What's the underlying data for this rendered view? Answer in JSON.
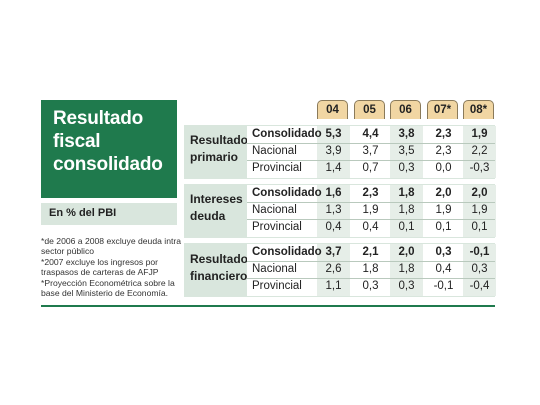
{
  "title": [
    "Resultado",
    "fiscal",
    "consolidado"
  ],
  "subtitle": "En % del PBI",
  "notes": [
    "*de 2006 a 2008 excluye deuda intra",
    "sector público",
    "*2007 excluye los ingresos por",
    "traspasos de carteras de AFJP",
    "*Proyección Econométrica sobre la",
    "base del Ministerio de Economía."
  ],
  "years": [
    "04",
    "05",
    "06",
    "07*",
    "08*"
  ],
  "groups": [
    {
      "label": [
        "Resultado",
        "primario"
      ],
      "rows": [
        {
          "name": "Consolidado",
          "values": [
            "5,3",
            "4,4",
            "3,8",
            "2,3",
            "1,9"
          ]
        },
        {
          "name": "Nacional",
          "values": [
            "3,9",
            "3,7",
            "3,5",
            "2,3",
            "2,2"
          ]
        },
        {
          "name": "Provincial",
          "values": [
            "1,4",
            "0,7",
            "0,3",
            "0,0",
            "-0,3"
          ]
        }
      ]
    },
    {
      "label": [
        "Intereses",
        "deuda"
      ],
      "rows": [
        {
          "name": "Consolidado",
          "values": [
            "1,6",
            "2,3",
            "1,8",
            "2,0",
            "2,0"
          ]
        },
        {
          "name": "Nacional",
          "values": [
            "1,3",
            "1,9",
            "1,8",
            "1,9",
            "1,9"
          ]
        },
        {
          "name": "Provincial",
          "values": [
            "0,4",
            "0,4",
            "0,1",
            "0,1",
            "0,1"
          ]
        }
      ]
    },
    {
      "label": [
        "Resultado",
        "financiero"
      ],
      "rows": [
        {
          "name": "Consolidado",
          "values": [
            "3,7",
            "2,1",
            "2,0",
            "0,3",
            "-0,1"
          ]
        },
        {
          "name": "Nacional",
          "values": [
            "2,6",
            "1,8",
            "1,8",
            "0,4",
            "0,3"
          ]
        },
        {
          "name": "Provincial",
          "values": [
            "1,1",
            "0,3",
            "0,3",
            "-0,1",
            "-0,4"
          ]
        }
      ]
    }
  ]
}
